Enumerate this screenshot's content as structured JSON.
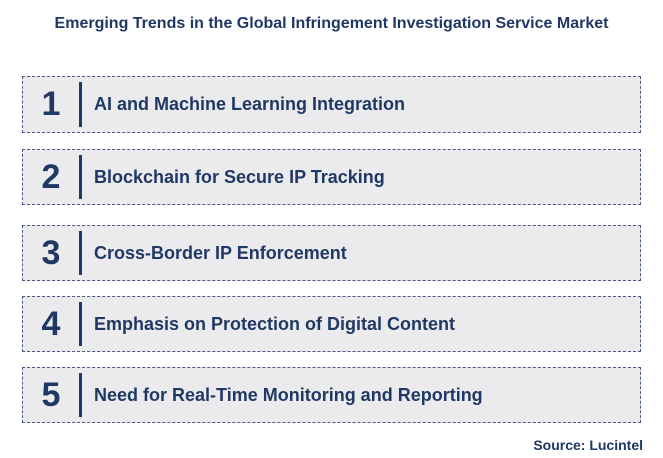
{
  "title": "Emerging Trends in the Global Infringement Investigation Service Market",
  "trends": [
    {
      "number": "1",
      "label": "AI and Machine Learning Integration"
    },
    {
      "number": "2",
      "label": "Blockchain for Secure IP Tracking"
    },
    {
      "number": "3",
      "label": "Cross-Border IP Enforcement"
    },
    {
      "number": "4",
      "label": "Emphasis on Protection of Digital Content"
    },
    {
      "number": "5",
      "label": "Need for Real-Time Monitoring and Reporting"
    }
  ],
  "source": "Source: Lucintel",
  "colors": {
    "text": "#1f3864",
    "box_fill": "#ebebee",
    "box_border": "#4a5a82"
  }
}
